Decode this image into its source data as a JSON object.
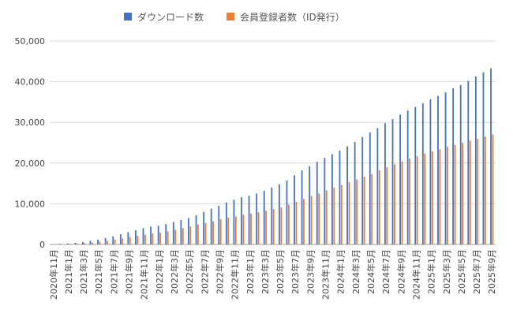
{
  "chart_data": {
    "type": "bar",
    "title": "",
    "xlabel": "",
    "ylabel": "",
    "ylim": [
      0,
      50000
    ],
    "yticks": [
      0,
      10000,
      20000,
      30000,
      40000,
      50000
    ],
    "ytick_labels": [
      "0",
      "10,000",
      "20,000",
      "30,000",
      "40,000",
      "50,000"
    ],
    "grid": true,
    "legend_position": "top-center",
    "categories": [
      "2020年11月",
      "2020年12月",
      "2021年1月",
      "2021年2月",
      "2021年3月",
      "2021年4月",
      "2021年5月",
      "2021年6月",
      "2021年7月",
      "2021年8月",
      "2021年9月",
      "2021年10月",
      "2021年11月",
      "2021年12月",
      "2022年1月",
      "2022年2月",
      "2022年3月",
      "2022年4月",
      "2022年5月",
      "2022年6月",
      "2022年7月",
      "2022年8月",
      "2022年9月",
      "2022年10月",
      "2022年11月",
      "2022年12月",
      "2023年1月",
      "2023年2月",
      "2023年3月",
      "2023年4月",
      "2023年5月",
      "2023年6月",
      "2023年7月",
      "2023年8月",
      "2023年9月",
      "2023年10月",
      "2023年11月",
      "2023年12月",
      "2024年1月",
      "2024年2月",
      "2024年3月",
      "2024年4月",
      "2024年5月",
      "2024年6月",
      "2024年7月",
      "2024年8月",
      "2024年9月",
      "2024年10月",
      "2024年11月",
      "2024年12月",
      "2025年1月",
      "2025年2月",
      "2025年3月",
      "2025年4月",
      "2025年5月",
      "2025年6月",
      "2025年7月",
      "2025年8月",
      "2025年9月"
    ],
    "tick_labels": [
      "2020年11月",
      "2021年1月",
      "2021年3月",
      "2021年5月",
      "2021年7月",
      "2021年9月",
      "2021年11月",
      "2022年1月",
      "2022年3月",
      "2022年5月",
      "2022年7月",
      "2022年9月",
      "2022年11月",
      "2023年1月",
      "2023年3月",
      "2023年5月",
      "2023年7月",
      "2023年9月",
      "2023年11月",
      "2024年1月",
      "2024年3月",
      "2024年5月",
      "2024年7月",
      "2024年9月",
      "2024年11月",
      "2025年1月",
      "2025年3月",
      "2025年5月",
      "2025年7月",
      "2025年9月"
    ],
    "series": [
      {
        "name": "ダウンロード数",
        "color": "#4472c4",
        "values": [
          50,
          150,
          250,
          400,
          600,
          900,
          1200,
          1600,
          2000,
          2500,
          3000,
          3500,
          4000,
          4400,
          4600,
          5000,
          5500,
          6000,
          6500,
          7200,
          8000,
          8800,
          9500,
          10300,
          11000,
          11600,
          12000,
          12500,
          13200,
          14000,
          14800,
          15700,
          17000,
          18200,
          19200,
          20300,
          21300,
          22200,
          23100,
          24100,
          25200,
          26400,
          27500,
          28600,
          29800,
          30800,
          31900,
          32900,
          33800,
          34700,
          35700,
          36500,
          37400,
          38400,
          39200,
          40200,
          41300,
          42300,
          43300
        ]
      },
      {
        "name": "会員登録者数（ID発行）",
        "color": "#ed7d31",
        "values": [
          30,
          80,
          150,
          250,
          350,
          500,
          700,
          900,
          1200,
          1500,
          1800,
          2100,
          2400,
          2700,
          2900,
          3200,
          3600,
          4000,
          4400,
          4900,
          5300,
          5700,
          6200,
          6600,
          6900,
          7300,
          7600,
          7900,
          8300,
          8700,
          9100,
          9800,
          10500,
          11200,
          11900,
          12500,
          13300,
          14000,
          14600,
          15300,
          16000,
          16700,
          17300,
          18200,
          19000,
          19700,
          20400,
          21100,
          21700,
          22300,
          22900,
          23400,
          24000,
          24500,
          25000,
          25500,
          26000,
          26500,
          27000
        ]
      }
    ]
  }
}
